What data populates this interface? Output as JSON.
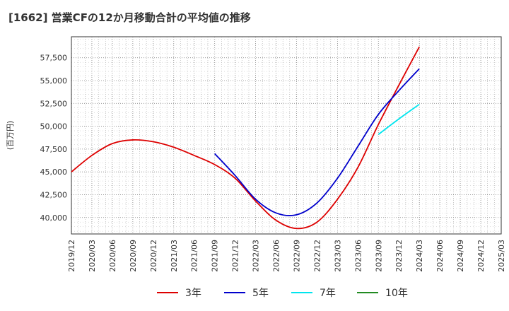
{
  "chart_data": {
    "type": "line",
    "title": "[1662]  営業CFの12か月移動合計の平均値の推移",
    "ylabel": "(百万円)",
    "xlabel": "",
    "ylim": [
      38200,
      59800
    ],
    "y_ticks": [
      "40,000",
      "42,500",
      "45,000",
      "47,500",
      "50,000",
      "52,500",
      "55,000",
      "57,500"
    ],
    "y_tick_values": [
      40000,
      42500,
      45000,
      47500,
      50000,
      52500,
      55000,
      57500
    ],
    "x_ticks": [
      "2019/12",
      "2020/03",
      "2020/06",
      "2020/09",
      "2020/12",
      "2021/03",
      "2021/06",
      "2021/09",
      "2021/12",
      "2022/03",
      "2022/06",
      "2022/09",
      "2022/12",
      "2023/03",
      "2023/06",
      "2023/09",
      "2023/12",
      "2024/03",
      "2024/06",
      "2024/09",
      "2024/12",
      "2025/03"
    ],
    "grid": true,
    "legend_position": "bottom",
    "series": [
      {
        "name": "3年",
        "color": "#dd0000",
        "x": [
          "2019/12",
          "2020/03",
          "2020/06",
          "2020/09",
          "2020/12",
          "2021/03",
          "2021/06",
          "2021/09",
          "2021/12",
          "2022/03",
          "2022/06",
          "2022/09",
          "2022/12",
          "2023/03",
          "2023/06",
          "2023/09",
          "2023/12",
          "2024/03"
        ],
        "values": [
          45000,
          46800,
          48100,
          48500,
          48300,
          47700,
          46800,
          45800,
          44300,
          41800,
          39700,
          38800,
          39500,
          42000,
          45500,
          50200,
          54500,
          58700
        ]
      },
      {
        "name": "5年",
        "color": "#0000cc",
        "x": [
          "2021/09",
          "2021/12",
          "2022/03",
          "2022/06",
          "2022/09",
          "2022/12",
          "2023/03",
          "2023/06",
          "2023/09",
          "2023/12",
          "2024/03"
        ],
        "values": [
          47000,
          44600,
          42000,
          40500,
          40300,
          41600,
          44300,
          47800,
          51300,
          53900,
          56300
        ]
      },
      {
        "name": "7年",
        "color": "#00e5ee",
        "x": [
          "2023/09",
          "2023/12",
          "2024/03"
        ],
        "values": [
          49100,
          50800,
          52400
        ]
      },
      {
        "name": "10年",
        "color": "#228b22",
        "x": [],
        "values": []
      }
    ]
  }
}
